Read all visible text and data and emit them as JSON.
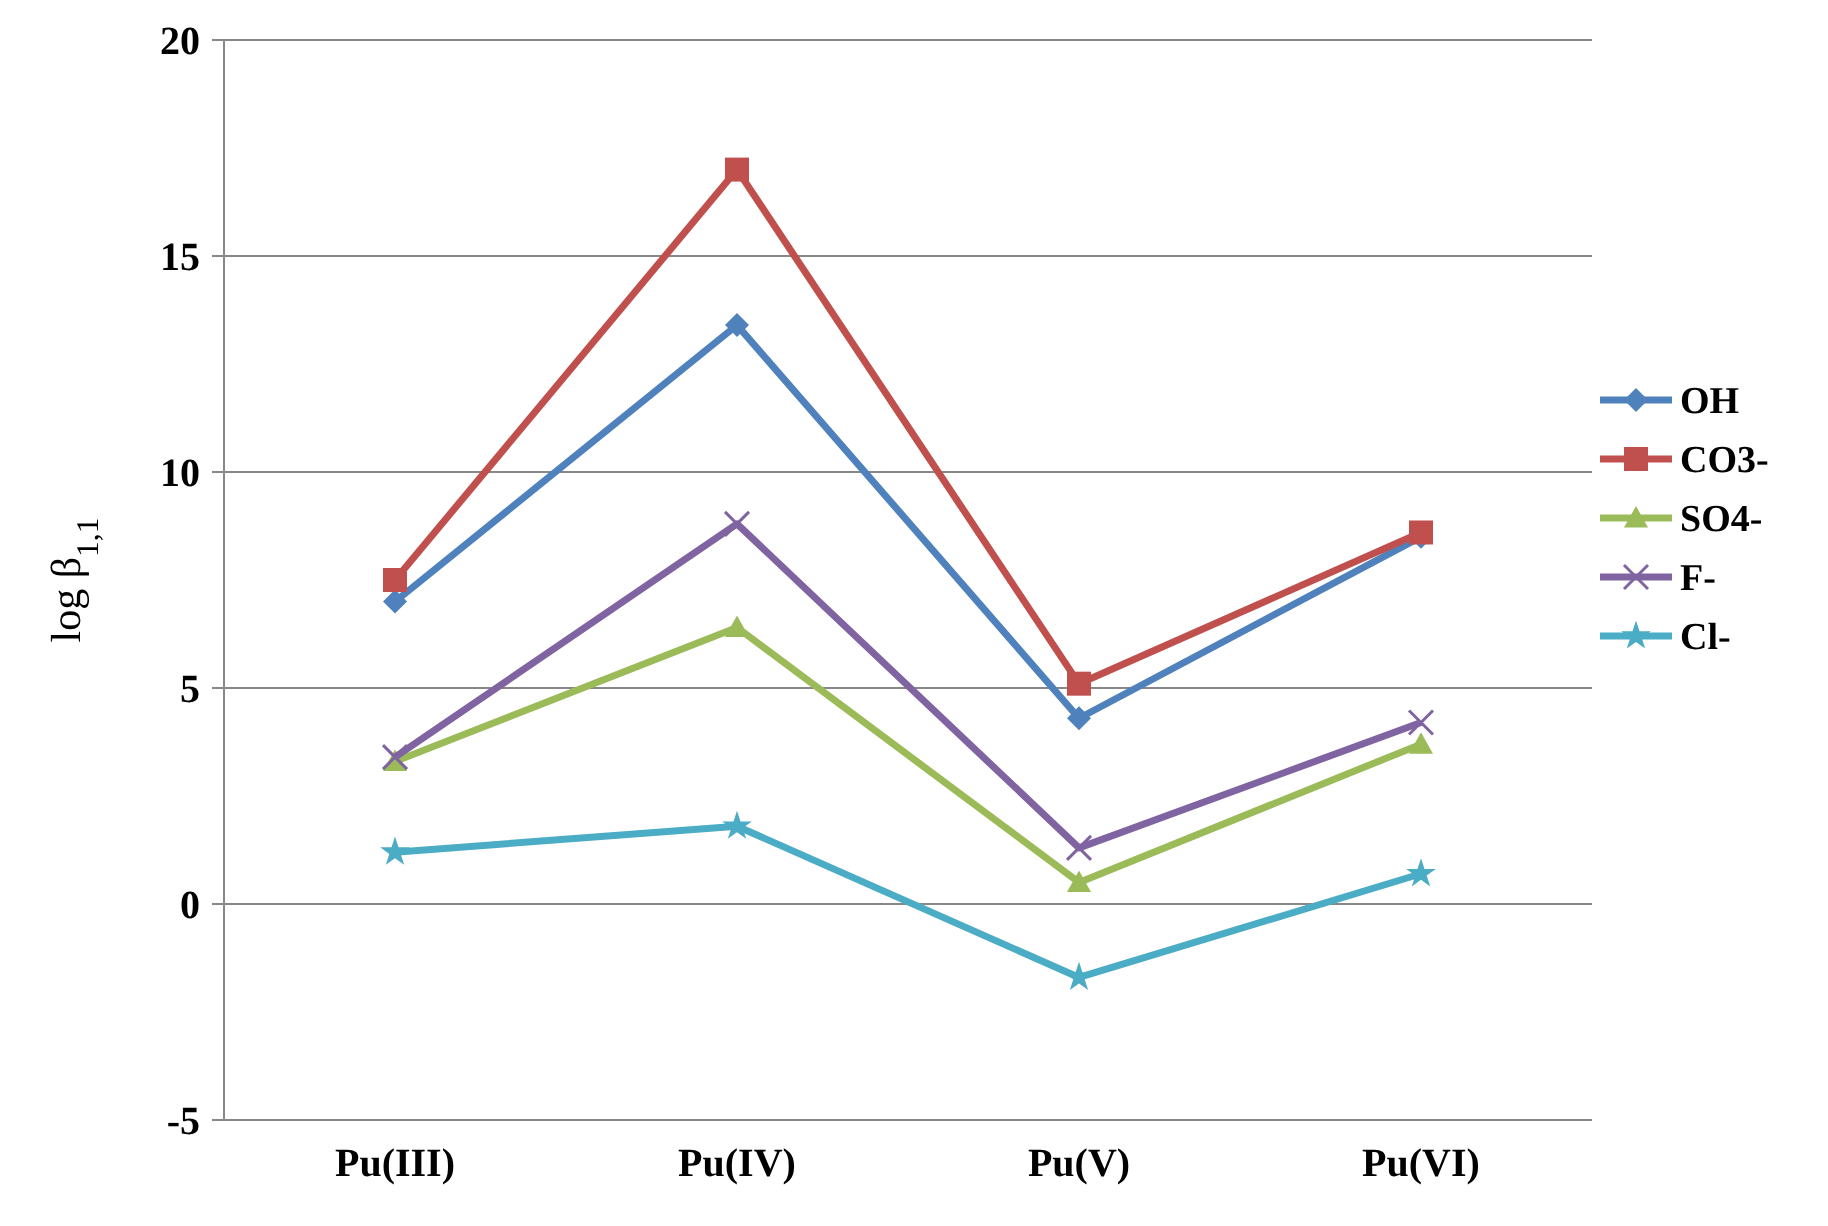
{
  "chart_data": {
    "type": "line",
    "ylabel": "log β$_{1,1}$",
    "categories": [
      "Pu(III)",
      "Pu(IV)",
      "Pu(V)",
      "Pu(VI)"
    ],
    "series": [
      {
        "name": "OH",
        "color": "#4f81bd",
        "marker": "diamond",
        "values": [
          7.0,
          13.4,
          4.3,
          8.5
        ]
      },
      {
        "name": "CO3-",
        "color": "#c0504d",
        "marker": "square",
        "values": [
          7.5,
          17.0,
          5.1,
          8.6
        ]
      },
      {
        "name": "SO4-",
        "color": "#9bbb59",
        "marker": "triangle",
        "values": [
          3.3,
          6.4,
          0.5,
          3.7
        ]
      },
      {
        "name": "F-",
        "color": "#8064a2",
        "marker": "cross",
        "values": [
          3.4,
          8.8,
          1.3,
          4.2
        ]
      },
      {
        "name": "Cl-",
        "color": "#4bacc6",
        "marker": "star",
        "values": [
          1.2,
          1.8,
          -1.7,
          0.7
        ]
      }
    ],
    "ylim": [
      -5,
      20
    ],
    "yticks": [
      -5,
      0,
      5,
      10,
      15,
      20
    ],
    "grid": "y",
    "legend": "right",
    "line_style": "solid"
  }
}
